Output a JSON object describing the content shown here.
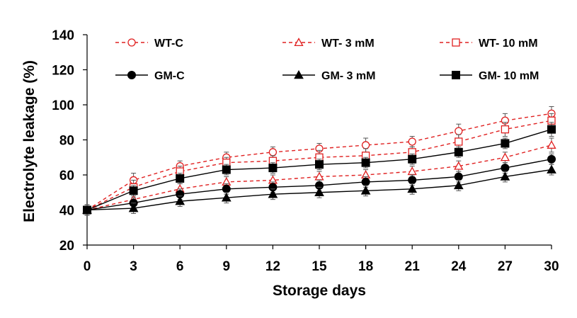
{
  "chart_data": {
    "type": "line",
    "title": "",
    "xlabel": "Storage days",
    "ylabel": "Electrolyte leakage (%)",
    "x": [
      0,
      3,
      6,
      9,
      12,
      15,
      18,
      21,
      24,
      27,
      30
    ],
    "xlim": [
      0,
      30
    ],
    "ylim": [
      20,
      140
    ],
    "yticks": [
      20,
      40,
      60,
      80,
      100,
      120,
      140
    ],
    "grid": false,
    "legend_position": "top",
    "series": [
      {
        "name": "WT-C",
        "color": "#e02020",
        "line": "dashed",
        "marker": "circle-open",
        "values": [
          40,
          57,
          65,
          70,
          73,
          75,
          77,
          79,
          85,
          91,
          95
        ],
        "errors": [
          3,
          4,
          3,
          3,
          3,
          3,
          4,
          3,
          4,
          4,
          4
        ]
      },
      {
        "name": "WT- 3 mM",
        "color": "#e02020",
        "line": "dashed",
        "marker": "triangle-open",
        "values": [
          40,
          46,
          52,
          56,
          57,
          59,
          60,
          62,
          65,
          70,
          77
        ],
        "errors": [
          3,
          3,
          3,
          3,
          3,
          3,
          3,
          3,
          3,
          3,
          4
        ]
      },
      {
        "name": "WT- 10 mM",
        "color": "#e02020",
        "line": "dashed",
        "marker": "square-open",
        "values": [
          40,
          53,
          62,
          67,
          68,
          70,
          71,
          73,
          79,
          86,
          91
        ],
        "errors": [
          3,
          4,
          3,
          3,
          3,
          4,
          4,
          3,
          4,
          4,
          4
        ]
      },
      {
        "name": "GM-C",
        "color": "#000000",
        "line": "solid",
        "marker": "circle-filled",
        "values": [
          40,
          44,
          49,
          52,
          53,
          54,
          56,
          57,
          59,
          64,
          69
        ],
        "errors": [
          3,
          3,
          3,
          3,
          3,
          3,
          3,
          3,
          3,
          3,
          3
        ]
      },
      {
        "name": "GM- 3 mM",
        "color": "#000000",
        "line": "solid",
        "marker": "triangle-filled",
        "values": [
          40,
          41,
          45,
          47,
          49,
          50,
          51,
          52,
          54,
          59,
          63
        ],
        "errors": [
          3,
          3,
          3,
          3,
          3,
          3,
          3,
          3,
          3,
          3,
          3
        ]
      },
      {
        "name": "GM- 10 mM",
        "color": "#000000",
        "line": "solid",
        "marker": "square-filled",
        "values": [
          40,
          51,
          58,
          63,
          64,
          66,
          67,
          69,
          73,
          78,
          86
        ],
        "errors": [
          3,
          3,
          3,
          3,
          3,
          3,
          3,
          3,
          3,
          3,
          4
        ]
      }
    ]
  }
}
